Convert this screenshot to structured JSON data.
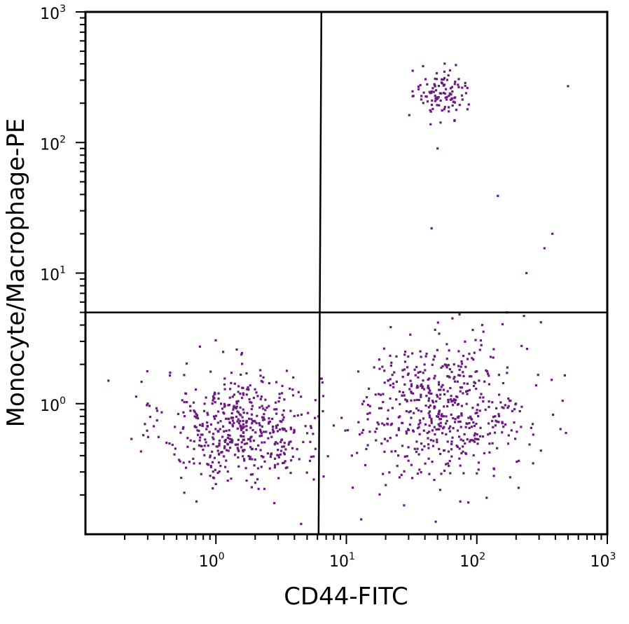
{
  "chart_data": {
    "type": "scatter",
    "xlabel": "CD44-FITC",
    "ylabel": "Monocyte/Macrophage-PE",
    "xscale": "log",
    "yscale": "log",
    "xlim": [
      0.1,
      1000
    ],
    "ylim": [
      0.1,
      1000
    ],
    "x_ticks": [
      {
        "base": "10",
        "exp": "0"
      },
      {
        "base": "10",
        "exp": "1"
      },
      {
        "base": "10",
        "exp": "2"
      },
      {
        "base": "10",
        "exp": "3"
      }
    ],
    "y_ticks": [
      {
        "base": "10",
        "exp": "0"
      },
      {
        "base": "10",
        "exp": "1"
      },
      {
        "base": "10",
        "exp": "2"
      },
      {
        "base": "10",
        "exp": "3"
      }
    ],
    "quadrant_gate": {
      "x": 6.2,
      "y": 5
    },
    "marker_color": "#6b1a80",
    "grid": false,
    "legend": "none",
    "populations": [
      {
        "log_x_center": 0.2,
        "log_y_center": -0.18,
        "log_x_spread": 0.3,
        "log_y_spread": 0.22,
        "count": 520
      },
      {
        "log_x_center": 1.75,
        "log_y_center": -0.05,
        "log_x_spread": 0.32,
        "log_y_spread": 0.26,
        "count": 560
      },
      {
        "log_x_center": 1.73,
        "log_y_center": 2.38,
        "log_x_spread": 0.1,
        "log_y_spread": 0.1,
        "count": 110
      }
    ],
    "outliers": [
      [
        0.15,
        1.5
      ],
      [
        50,
        90
      ],
      [
        45,
        22
      ],
      [
        145,
        39
      ],
      [
        380,
        20
      ],
      [
        330,
        15.5
      ],
      [
        240,
        10
      ],
      [
        500,
        270
      ],
      [
        230,
        4.7
      ],
      [
        310,
        4.2
      ],
      [
        170,
        5.0
      ],
      [
        110,
        4.0
      ],
      [
        65,
        4.5
      ],
      [
        6.3,
        1.55
      ],
      [
        5.8,
        0.45
      ],
      [
        0.3,
        1.0
      ],
      [
        4.5,
        0.12
      ],
      [
        13,
        0.13
      ],
      [
        8,
        0.68
      ]
    ]
  }
}
